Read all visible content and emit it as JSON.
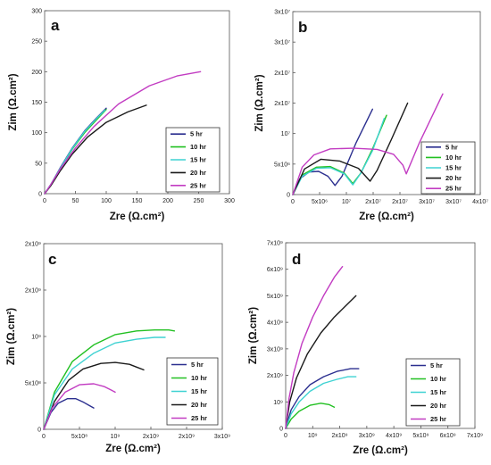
{
  "figure": {
    "legend_labels": [
      "5 hr",
      "10 hr",
      "15 hr",
      "20 hr",
      "25 hr"
    ],
    "series_colors": [
      "#2b2f8f",
      "#22c022",
      "#3fd2d2",
      "#1a1a1a",
      "#c23cc2"
    ]
  },
  "chart_data": [
    {
      "panel": "a",
      "type": "line",
      "xlabel": "Zre (Ω.cm²)",
      "ylabel": "Zim (Ω.cm²)",
      "xlim": [
        0,
        300
      ],
      "ylim": [
        0,
        300
      ],
      "xticks": [
        "0",
        "50",
        "100",
        "150",
        "200",
        "250",
        "300"
      ],
      "yticks": [
        "0",
        "50",
        "100",
        "150",
        "200",
        "250",
        "300"
      ],
      "legend": "bottom-right",
      "series": [
        {
          "name": "5 hr",
          "color": "#2b2f8f",
          "x": [
            0,
            10,
            25,
            45,
            65,
            85,
            100
          ],
          "y": [
            0,
            15,
            42,
            75,
            103,
            125,
            140
          ]
        },
        {
          "name": "10 hr",
          "color": "#22c022",
          "x": [
            0,
            10,
            25,
            45,
            65,
            85,
            100
          ],
          "y": [
            0,
            14,
            40,
            73,
            100,
            122,
            138
          ]
        },
        {
          "name": "15 hr",
          "color": "#3fd2d2",
          "x": [
            0,
            10,
            25,
            45,
            65,
            85,
            98
          ],
          "y": [
            0,
            15,
            41,
            74,
            102,
            124,
            137
          ]
        },
        {
          "name": "20 hr",
          "color": "#1a1a1a",
          "x": [
            0,
            10,
            25,
            45,
            70,
            100,
            135,
            165
          ],
          "y": [
            0,
            13,
            37,
            65,
            93,
            117,
            134,
            145
          ]
        },
        {
          "name": "25 hr",
          "color": "#c23cc2",
          "x": [
            0,
            10,
            25,
            50,
            80,
            120,
            170,
            215,
            253
          ],
          "y": [
            0,
            15,
            40,
            75,
            110,
            147,
            177,
            193,
            200
          ]
        }
      ]
    },
    {
      "panel": "b",
      "type": "line",
      "xlabel": "Zre (Ω.cm²)",
      "ylabel": "Zim (Ω.cm²)",
      "xlim": [
        0,
        40000000
      ],
      "ylim": [
        0,
        30000000
      ],
      "xticks": [
        "0",
        "5x10⁶",
        "10⁷",
        "2x10⁷",
        "2x10⁷",
        "3x10⁷",
        "3x10⁷",
        "4x10⁷"
      ],
      "yticks": [
        "0",
        "5x10⁶",
        "10⁷",
        "2x10⁷",
        "2x10⁷",
        "3x10⁷",
        "3x10⁷"
      ],
      "legend": "bottom-right",
      "series": [
        {
          "name": "5 hr",
          "color": "#2b2f8f",
          "x": [
            0,
            1500000,
            3500000,
            5500000,
            7500000,
            9000000,
            10500000,
            13500000,
            17000000
          ],
          "y": [
            0,
            2600000,
            3700000,
            3800000,
            3000000,
            1500000,
            3000000,
            8500000,
            14000000
          ]
        },
        {
          "name": "10 hr",
          "color": "#22c022",
          "x": [
            0,
            2000000,
            5000000,
            8000000,
            11000000,
            12800000,
            14500000,
            17000000,
            20000000
          ],
          "y": [
            0,
            3200000,
            4500000,
            4600000,
            3500000,
            1800000,
            3500000,
            7500000,
            13000000
          ]
        },
        {
          "name": "15 hr",
          "color": "#3fd2d2",
          "x": [
            0,
            2000000,
            5000000,
            8000000,
            11000000,
            12800000,
            14500000,
            17000000,
            19500000
          ],
          "y": [
            0,
            3000000,
            4300000,
            4400000,
            3400000,
            1600000,
            3500000,
            7200000,
            12500000
          ]
        },
        {
          "name": "20 hr",
          "color": "#1a1a1a",
          "x": [
            0,
            2500000,
            6000000,
            10000000,
            14000000,
            16500000,
            18000000,
            21000000,
            24500000
          ],
          "y": [
            0,
            4200000,
            5800000,
            5500000,
            4300000,
            2200000,
            4000000,
            9000000,
            15000000
          ]
        },
        {
          "name": "25 hr",
          "color": "#c23cc2",
          "x": [
            0,
            2000000,
            4500000,
            8000000,
            13000000,
            18000000,
            21500000,
            23500000,
            24200000,
            27000000,
            32000000
          ],
          "y": [
            0,
            4500000,
            6500000,
            7500000,
            7600000,
            7400000,
            6600000,
            4800000,
            3400000,
            8500000,
            16500000
          ]
        }
      ]
    },
    {
      "panel": "c",
      "type": "line",
      "xlabel": "Zre (Ω.cm²)",
      "ylabel": "Zim (Ω.cm²)",
      "xlim": [
        0,
        2500000000
      ],
      "ylim": [
        0,
        2000000000
      ],
      "xticks": [
        "0",
        "5x10⁸",
        "10⁹",
        "2x10⁹",
        "2x10⁹",
        "3x10⁹"
      ],
      "yticks": [
        "0",
        "5x10⁸",
        "10⁹",
        "2x10⁹",
        "2x10⁹"
      ],
      "legend": "bottom-right",
      "series": [
        {
          "name": "5 hr",
          "color": "#2b2f8f",
          "x": [
            0,
            100000000,
            200000000,
            330000000,
            450000000,
            560000000,
            630000000,
            700000000
          ],
          "y": [
            0,
            180000000,
            280000000,
            330000000,
            330000000,
            290000000,
            260000000,
            230000000
          ]
        },
        {
          "name": "10 hr",
          "color": "#22c022",
          "x": [
            0,
            150000000,
            400000000,
            700000000,
            1000000000,
            1300000000,
            1550000000,
            1750000000,
            1830000000
          ],
          "y": [
            0,
            400000000,
            730000000,
            910000000,
            1020000000,
            1060000000,
            1070000000,
            1070000000,
            1060000000
          ]
        },
        {
          "name": "15 hr",
          "color": "#3fd2d2",
          "x": [
            0,
            150000000,
            400000000,
            700000000,
            1000000000,
            1300000000,
            1550000000,
            1700000000
          ],
          "y": [
            0,
            370000000,
            650000000,
            820000000,
            930000000,
            970000000,
            990000000,
            990000000
          ]
        },
        {
          "name": "20 hr",
          "color": "#1a1a1a",
          "x": [
            0,
            150000000,
            350000000,
            550000000,
            800000000,
            1000000000,
            1200000000,
            1300000000,
            1400000000
          ],
          "y": [
            0,
            300000000,
            530000000,
            650000000,
            710000000,
            720000000,
            700000000,
            670000000,
            640000000
          ]
        },
        {
          "name": "25 hr",
          "color": "#c23cc2",
          "x": [
            0,
            120000000,
            300000000,
            500000000,
            700000000,
            850000000,
            950000000,
            1000000000
          ],
          "y": [
            0,
            230000000,
            400000000,
            480000000,
            490000000,
            460000000,
            420000000,
            400000000
          ]
        }
      ]
    },
    {
      "panel": "d",
      "type": "line",
      "xlabel": "Zre (Ω.cm²)",
      "ylabel": "Zim (Ω.cm²)",
      "xlim": [
        0,
        7000000000
      ],
      "ylim": [
        0,
        7000000000
      ],
      "xticks": [
        "0",
        "10⁹",
        "2x10⁹",
        "3x10⁹",
        "4x10⁹",
        "5x10⁹",
        "6x10⁹",
        "7x10⁹"
      ],
      "yticks": [
        "0",
        "10⁹",
        "2x10⁹",
        "3x10⁹",
        "4x10⁹",
        "5x10⁹",
        "6x10⁹",
        "7x10⁹"
      ],
      "legend": "bottom-right",
      "series": [
        {
          "name": "5 hr",
          "color": "#2b2f8f",
          "x": [
            0,
            200000000,
            500000000,
            900000000,
            1400000000,
            1900000000,
            2400000000,
            2700000000
          ],
          "y": [
            0,
            700000000,
            1200000000,
            1650000000,
            1950000000,
            2150000000,
            2250000000,
            2250000000
          ]
        },
        {
          "name": "10 hr",
          "color": "#22c022",
          "x": [
            0,
            200000000,
            500000000,
            900000000,
            1300000000,
            1600000000,
            1800000000
          ],
          "y": [
            0,
            350000000,
            650000000,
            870000000,
            950000000,
            900000000,
            800000000
          ]
        },
        {
          "name": "15 hr",
          "color": "#3fd2d2",
          "x": [
            0,
            200000000,
            500000000,
            900000000,
            1400000000,
            1900000000,
            2300000000,
            2600000000
          ],
          "y": [
            0,
            550000000,
            1000000000,
            1400000000,
            1700000000,
            1850000000,
            1950000000,
            1950000000
          ]
        },
        {
          "name": "20 hr",
          "color": "#1a1a1a",
          "x": [
            0,
            150000000,
            400000000,
            800000000,
            1300000000,
            1800000000,
            2300000000,
            2600000000
          ],
          "y": [
            0,
            1000000000,
            1900000000,
            2800000000,
            3600000000,
            4200000000,
            4700000000,
            5000000000
          ]
        },
        {
          "name": "25 hr",
          "color": "#c23cc2",
          "x": [
            0,
            120000000,
            300000000,
            600000000,
            1000000000,
            1400000000,
            1800000000,
            2100000000
          ],
          "y": [
            0,
            1100000000,
            2100000000,
            3200000000,
            4200000000,
            5000000000,
            5700000000,
            6100000000
          ]
        }
      ]
    }
  ]
}
